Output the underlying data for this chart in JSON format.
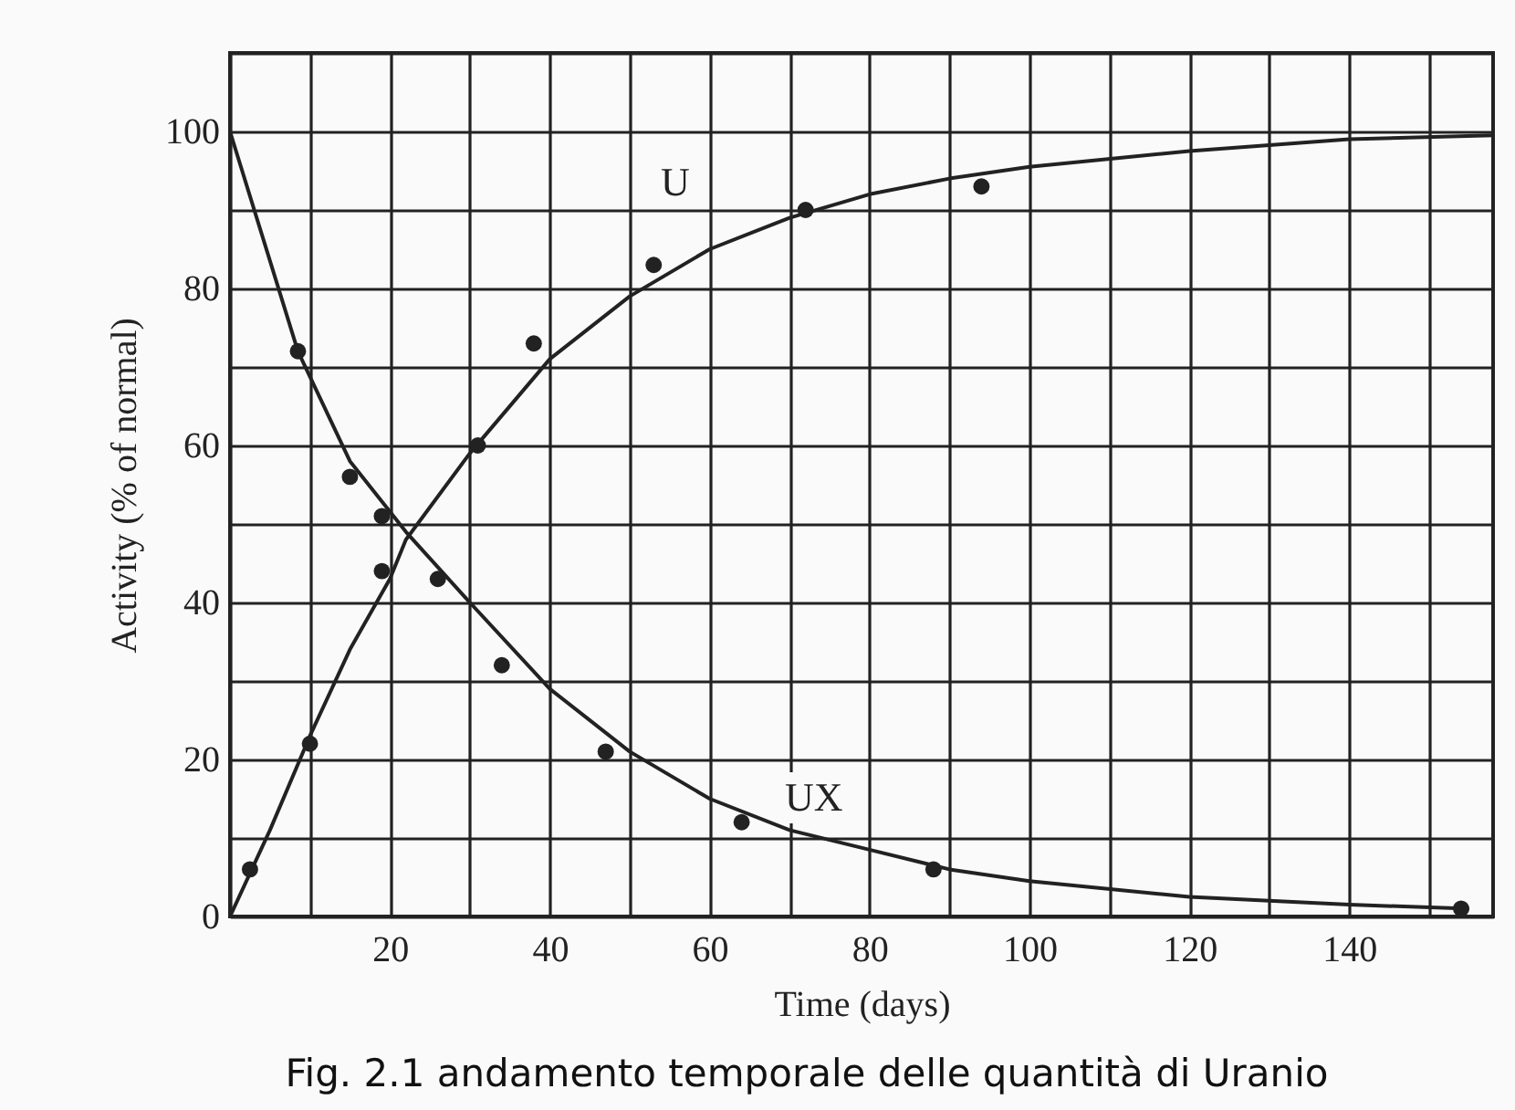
{
  "chart_data": {
    "type": "line",
    "xlabel": "Time (days)",
    "ylabel": "Activity (% of normal)",
    "xlim": [
      0,
      158
    ],
    "ylim": [
      0,
      110
    ],
    "xticks": [
      {
        "value": 0,
        "label": null
      },
      {
        "value": 10,
        "label": null
      },
      20,
      {
        "value": 30,
        "label": null
      },
      40,
      {
        "value": 50,
        "label": null
      },
      60,
      {
        "value": 70,
        "label": null
      },
      80,
      {
        "value": 90,
        "label": null
      },
      100,
      {
        "value": 110,
        "label": null
      },
      120,
      {
        "value": 130,
        "label": null
      },
      140,
      {
        "value": 150,
        "label": null
      }
    ],
    "yticks": [
      0,
      {
        "value": 10,
        "label": null
      },
      20,
      {
        "value": 30,
        "label": null
      },
      40,
      {
        "value": 50,
        "label": null
      },
      60,
      {
        "value": 70,
        "label": null
      },
      80,
      {
        "value": 90,
        "label": null
      },
      100,
      {
        "value": 110,
        "label": null
      }
    ],
    "grid": true,
    "series": [
      {
        "color": "#222222",
        "line_style": "solid",
        "marker": "none",
        "x": [
          0,
          5,
          10,
          15,
          20,
          22,
          30,
          40,
          50,
          60,
          70,
          80,
          90,
          100,
          120,
          140,
          158
        ],
        "values": [
          0,
          11,
          23,
          34,
          43,
          48,
          59,
          71,
          79,
          85,
          89,
          92,
          94,
          95.5,
          97.5,
          99,
          99.5
        ]
      },
      {
        "color": "#222222",
        "line_style": "solid",
        "marker": "none",
        "x": [
          0,
          8.5,
          15,
          22,
          30,
          40,
          50,
          60,
          70,
          80,
          90,
          100,
          120,
          140,
          155
        ],
        "values": [
          100,
          72,
          58,
          49,
          40,
          29,
          21,
          15,
          11,
          8.5,
          6,
          4.5,
          2.5,
          1.5,
          1
        ]
      },
      {
        "type": "scatter",
        "color": "#222222",
        "marker": "circle",
        "x": [
          2.5,
          10,
          19,
          31,
          38,
          53,
          72,
          94
        ],
        "values": [
          6,
          22,
          44,
          60,
          73,
          83,
          90,
          93
        ]
      },
      {
        "type": "scatter",
        "color": "#222222",
        "marker": "circle",
        "x": [
          8.5,
          15,
          19,
          26,
          34,
          47,
          64,
          88,
          154
        ],
        "values": [
          72,
          56,
          51,
          43,
          32,
          21,
          12,
          6,
          1
        ]
      }
    ],
    "annotations": [
      "U",
      "UX",
      "Fig. 2.1 andamento temporale delle quantità di Uranio"
    ]
  }
}
